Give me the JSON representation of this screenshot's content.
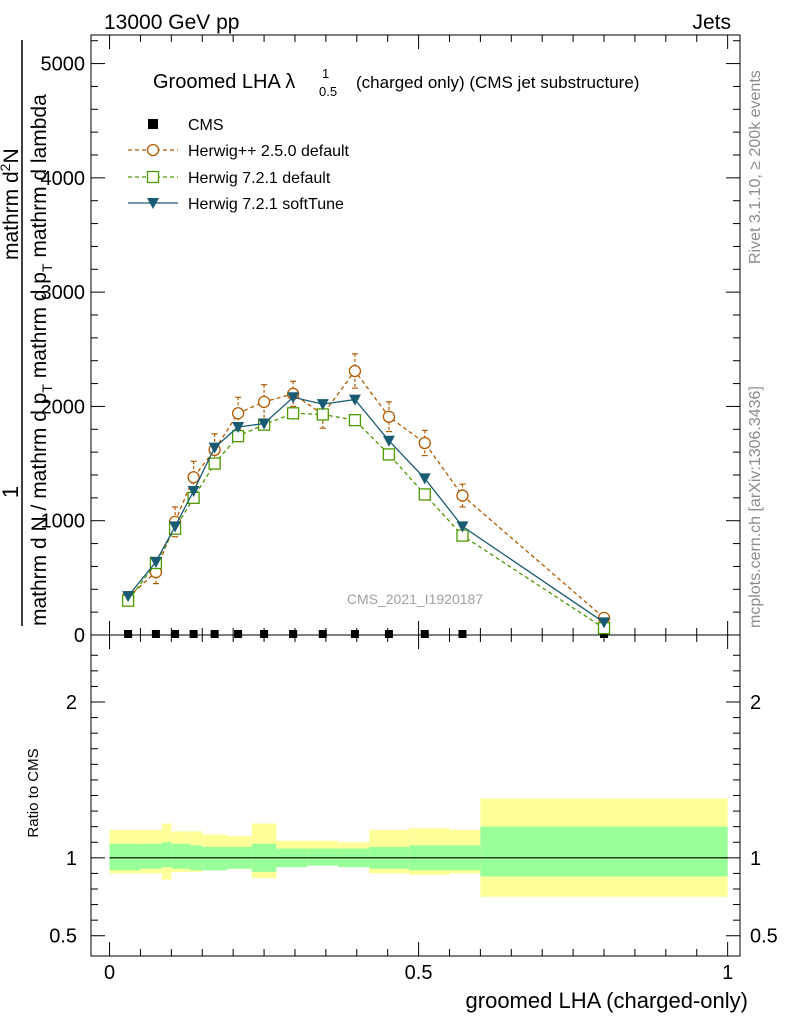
{
  "header": {
    "left": "13000 GeV pp",
    "right": "Jets"
  },
  "side_labels": {
    "rivet": "Rivet 3.1.10, ≥ 200k events",
    "mcplots": "mcplots.cern.ch [arXiv:1306.3436]"
  },
  "chart_data": {
    "type": "line",
    "title": "Groomed LHA λ",
    "title_sup": "1",
    "title_sub": "0.5",
    "subtitle": "(charged only) (CMS jet substructure)",
    "watermark": "CMS_2021_I1920187",
    "xlabel": "groomed LHA (charged-only)",
    "ylabel_lines": [
      "mathrm d N / mathrm d p",
      "T",
      " mathrm d lambda",
      "mathrm d",
      "N",
      "mathrm d p",
      "T",
      " mathrm d lambda"
    ],
    "ylabel_parts": {
      "one": "1",
      "denominator": "mathrm d N / mathrm d p",
      "denominator_sub": "T",
      "denominator_tail": " mathrm d p",
      "denominator_tail_sub": "T",
      "denominator_end": " mathrm d lambda",
      "numerator": "mathrm d",
      "numerator_sup": "2",
      "numerator_tail": "N"
    },
    "ylim": [
      0,
      5250
    ],
    "xlim": [
      -0.03,
      1.02
    ],
    "yticks": [
      0,
      1000,
      2000,
      3000,
      4000,
      5000
    ],
    "ytick_labels": [
      "0",
      "1000",
      "2000",
      "3000",
      "4000",
      "5000"
    ],
    "xticks": [
      0,
      0.5,
      1
    ],
    "xtick_labels": [
      "0",
      "0.5",
      "1"
    ],
    "legend": [
      "CMS",
      "Herwig++ 2.5.0 default",
      "Herwig 7.2.1 default",
      "Herwig 7.2.1 softTune"
    ],
    "series": [
      {
        "name": "CMS",
        "color": "#000000",
        "x": [
          0.03,
          0.075,
          0.106,
          0.136,
          0.17,
          0.208,
          0.25,
          0.297,
          0.345,
          0.397,
          0.452,
          0.51,
          0.571,
          0.8
        ],
        "values": [
          0,
          0,
          0,
          0,
          0,
          0,
          0,
          0,
          0,
          0,
          0,
          0,
          0,
          0
        ]
      },
      {
        "name": "Herwig++ 2.5.0 default",
        "color": "#b35900",
        "x": [
          0.03,
          0.075,
          0.106,
          0.136,
          0.17,
          0.208,
          0.25,
          0.297,
          0.345,
          0.397,
          0.452,
          0.51,
          0.571,
          0.8
        ],
        "values": [
          330,
          550,
          990,
          1380,
          1620,
          1940,
          2040,
          2110,
          1930,
          2310,
          1910,
          1680,
          1220,
          150
        ],
        "errors": [
          50,
          100,
          130,
          140,
          140,
          140,
          150,
          110,
          120,
          150,
          130,
          110,
          100,
          40
        ]
      },
      {
        "name": "Herwig 7.2.1 default",
        "color": "#4d9900",
        "x": [
          0.03,
          0.075,
          0.106,
          0.136,
          0.17,
          0.208,
          0.25,
          0.297,
          0.345,
          0.397,
          0.452,
          0.51,
          0.571,
          0.8
        ],
        "values": [
          300,
          630,
          930,
          1200,
          1500,
          1740,
          1840,
          1940,
          1930,
          1880,
          1580,
          1230,
          870,
          60
        ]
      },
      {
        "name": "Herwig 7.2.1 softTune",
        "color": "#1a5a73",
        "x": [
          0.03,
          0.075,
          0.106,
          0.136,
          0.17,
          0.208,
          0.25,
          0.297,
          0.345,
          0.397,
          0.452,
          0.51,
          0.571,
          0.8
        ],
        "values": [
          340,
          640,
          950,
          1260,
          1640,
          1820,
          1850,
          2080,
          2020,
          2060,
          1700,
          1370,
          950,
          110
        ]
      }
    ],
    "ratio": {
      "ylabel": "Ratio to CMS",
      "ylim": [
        0.37,
        2.43
      ],
      "yticks": [
        0.5,
        1,
        2
      ],
      "ytick_labels": [
        "0.5",
        "1",
        "2"
      ],
      "bin_edges": [
        0,
        0.05,
        0.085,
        0.1,
        0.13,
        0.15,
        0.19,
        0.23,
        0.27,
        0.32,
        0.37,
        0.42,
        0.485,
        0.55,
        0.6,
        1.0
      ],
      "inner_band": [
        [
          0.92,
          1.09
        ],
        [
          0.93,
          1.09
        ],
        [
          0.94,
          1.1
        ],
        [
          0.93,
          1.09
        ],
        [
          0.92,
          1.08
        ],
        [
          0.92,
          1.07
        ],
        [
          0.93,
          1.07
        ],
        [
          0.91,
          1.09
        ],
        [
          0.94,
          1.06
        ],
        [
          0.95,
          1.06
        ],
        [
          0.94,
          1.06
        ],
        [
          0.93,
          1.07
        ],
        [
          0.92,
          1.08
        ],
        [
          0.92,
          1.08
        ],
        [
          0.88,
          1.2
        ]
      ],
      "outer_band": [
        [
          0.9,
          1.18
        ],
        [
          0.9,
          1.18
        ],
        [
          0.86,
          1.22
        ],
        [
          0.91,
          1.17
        ],
        [
          0.91,
          1.17
        ],
        [
          0.92,
          1.15
        ],
        [
          0.93,
          1.14
        ],
        [
          0.87,
          1.22
        ],
        [
          0.95,
          1.11
        ],
        [
          0.95,
          1.11
        ],
        [
          0.95,
          1.1
        ],
        [
          0.9,
          1.18
        ],
        [
          0.89,
          1.19
        ],
        [
          0.9,
          1.18
        ],
        [
          0.75,
          1.38
        ]
      ]
    }
  }
}
